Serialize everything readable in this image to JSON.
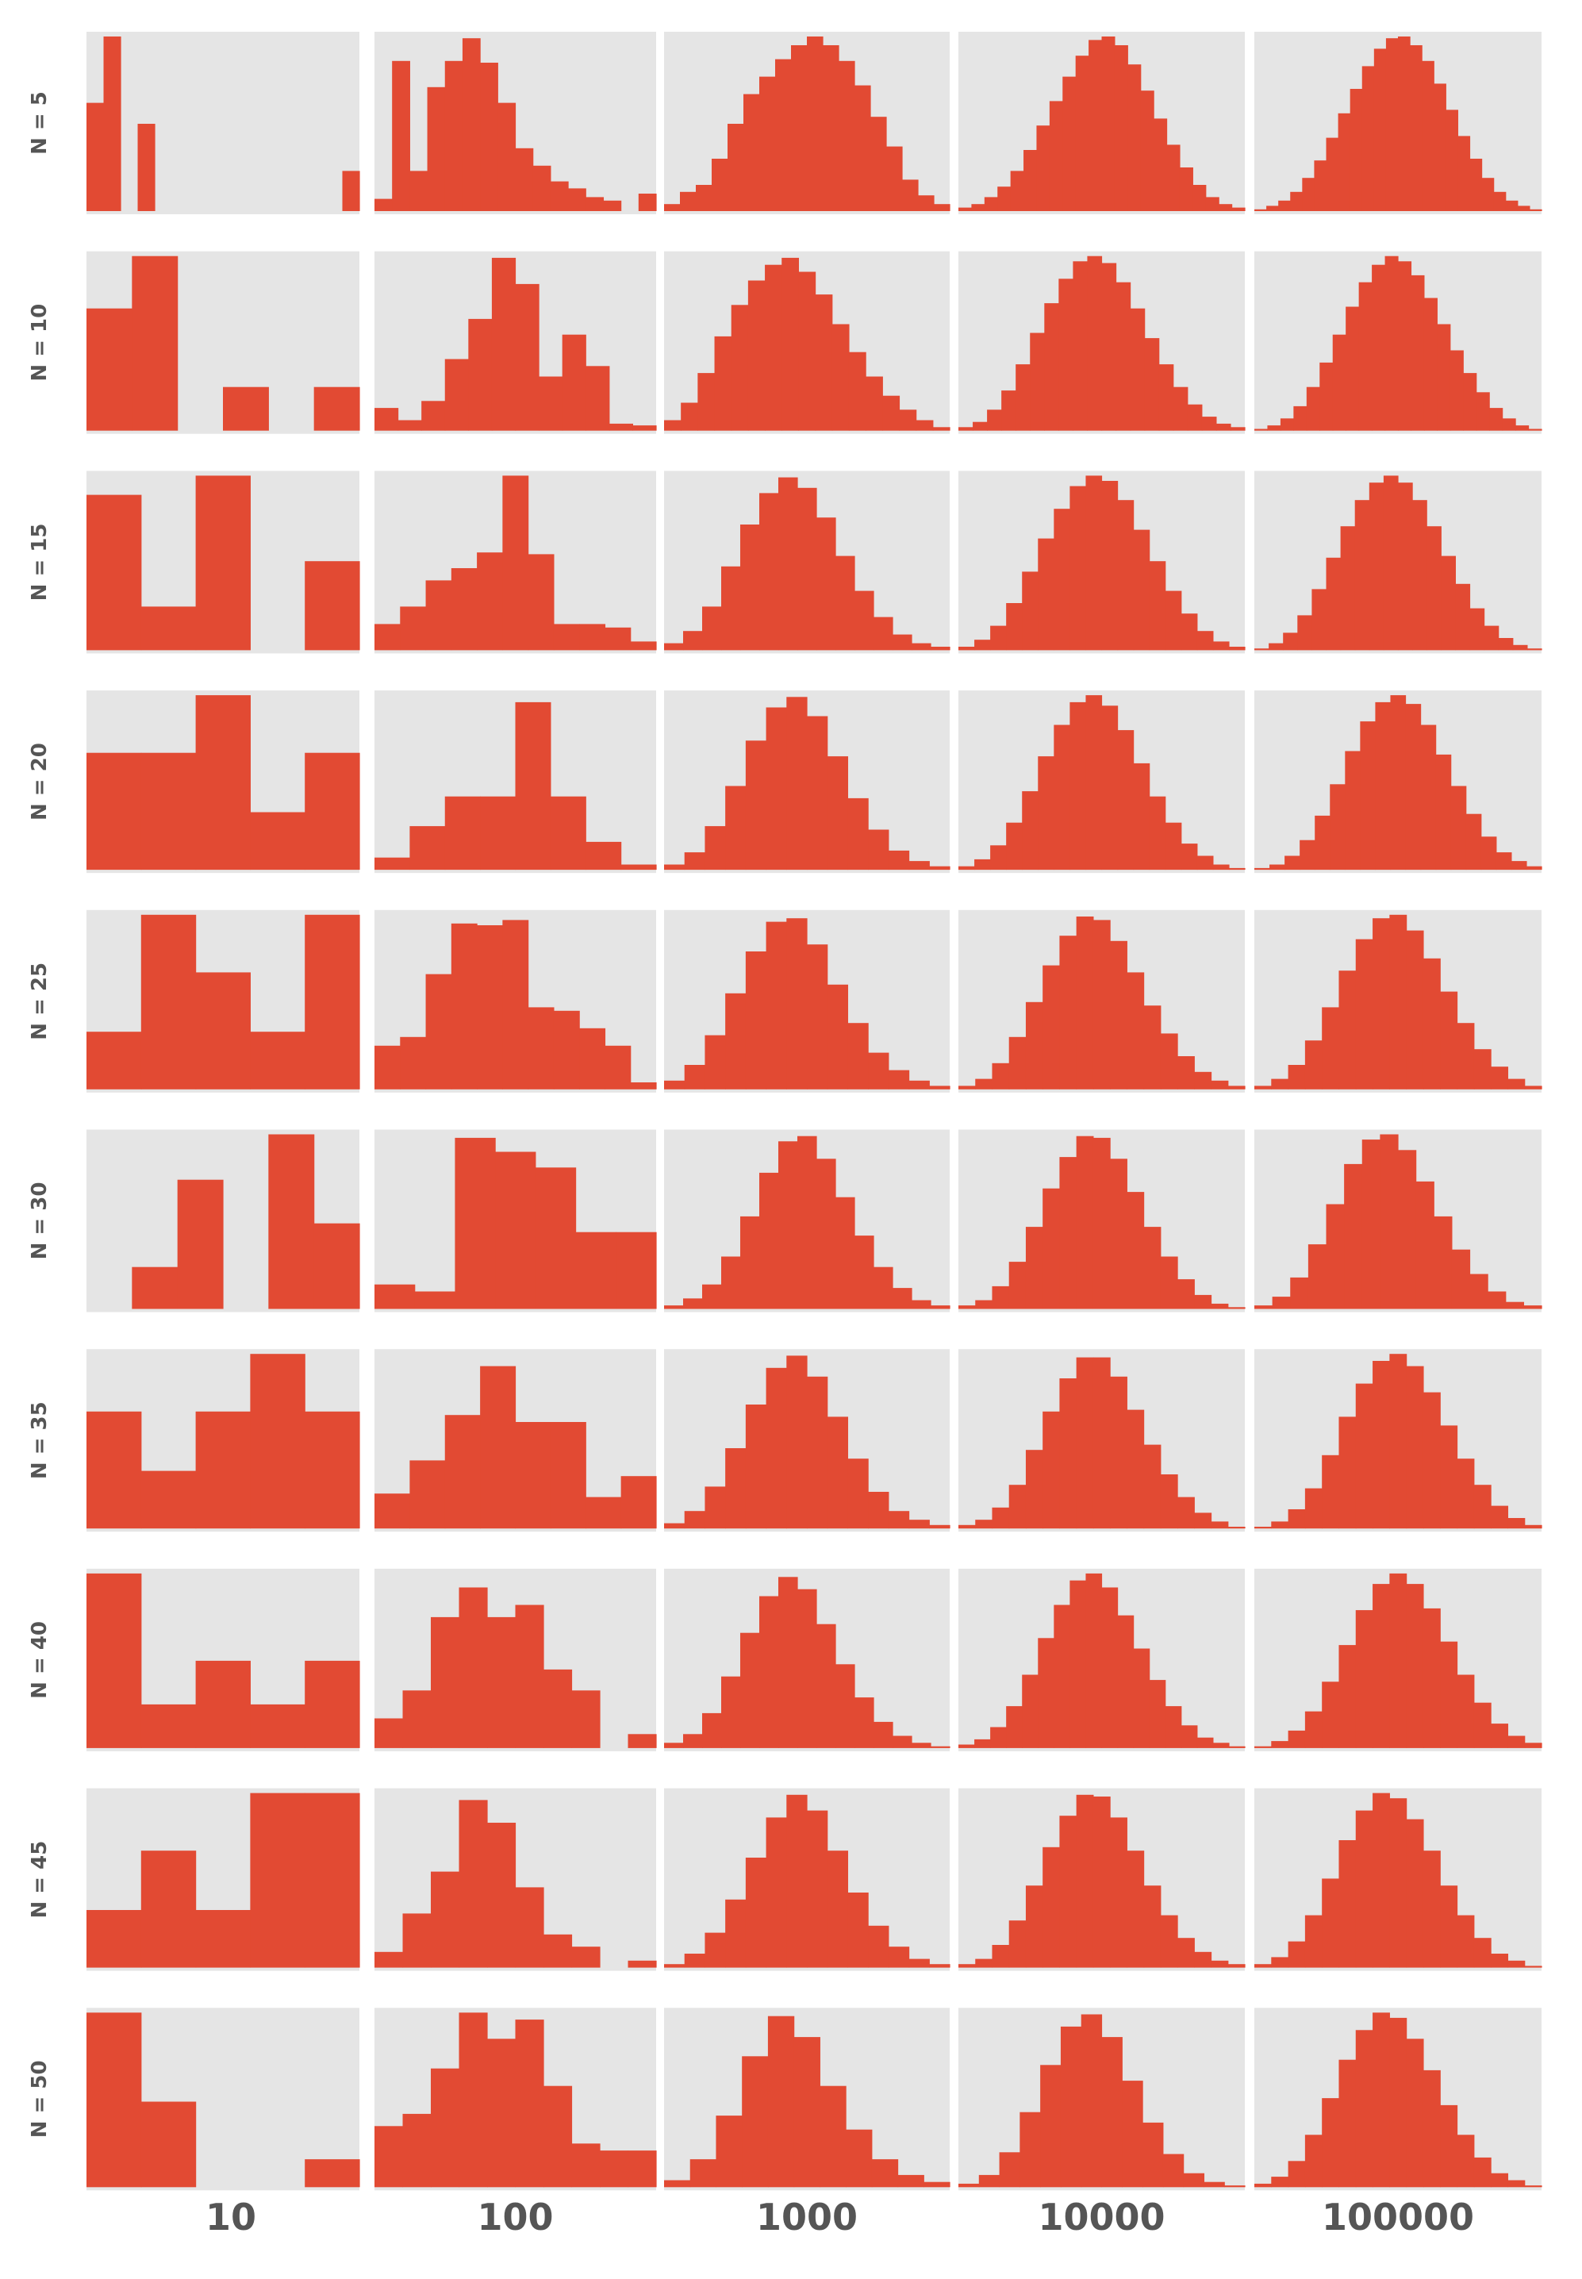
{
  "chart_data": {
    "type": "histogram-grid",
    "colors": {
      "bar": "#e24a33",
      "panel_bg": "#e5e5e5",
      "label": "#555555"
    },
    "grid": true,
    "row_labels": [
      "N = 5",
      "N = 10",
      "N = 15",
      "N = 20",
      "N = 25",
      "N = 30",
      "N = 35",
      "N = 40",
      "N = 45",
      "N = 50"
    ],
    "column_labels": [
      "10",
      "100",
      "1000",
      "10000",
      "100000"
    ],
    "panels": [
      [
        [
          0.62,
          1.0,
          0.0,
          0.5,
          0.0,
          0.0,
          0.0,
          0.0,
          0.0,
          0.0,
          0.0,
          0.0,
          0.0,
          0.0,
          0.0,
          0.23
        ],
        [
          0.07,
          0.86,
          0.23,
          0.71,
          0.86,
          0.99,
          0.85,
          0.62,
          0.36,
          0.26,
          0.17,
          0.13,
          0.08,
          0.06,
          0.0,
          0.1
        ],
        [
          0.04,
          0.11,
          0.15,
          0.3,
          0.5,
          0.67,
          0.77,
          0.87,
          0.95,
          1.0,
          0.95,
          0.86,
          0.72,
          0.54,
          0.37,
          0.18,
          0.09,
          0.04
        ],
        [
          0.02,
          0.04,
          0.08,
          0.14,
          0.23,
          0.35,
          0.49,
          0.63,
          0.77,
          0.89,
          0.98,
          1.0,
          0.95,
          0.84,
          0.69,
          0.53,
          0.38,
          0.25,
          0.15,
          0.08,
          0.04,
          0.02
        ],
        [
          0.01,
          0.03,
          0.06,
          0.11,
          0.19,
          0.29,
          0.42,
          0.56,
          0.7,
          0.83,
          0.93,
          0.99,
          1.0,
          0.95,
          0.86,
          0.73,
          0.58,
          0.43,
          0.3,
          0.19,
          0.11,
          0.06,
          0.03,
          0.01
        ]
      ],
      [
        [
          0.7,
          1.0,
          0.0,
          0.25,
          0.0,
          0.25
        ],
        [
          0.13,
          0.06,
          0.17,
          0.41,
          0.64,
          0.99,
          0.84,
          0.31,
          0.55,
          0.37,
          0.04,
          0.03
        ],
        [
          0.06,
          0.16,
          0.33,
          0.54,
          0.72,
          0.86,
          0.95,
          0.99,
          0.91,
          0.78,
          0.61,
          0.45,
          0.31,
          0.2,
          0.12,
          0.06,
          0.02
        ],
        [
          0.02,
          0.05,
          0.12,
          0.23,
          0.38,
          0.56,
          0.73,
          0.87,
          0.97,
          1.0,
          0.96,
          0.85,
          0.7,
          0.53,
          0.38,
          0.25,
          0.15,
          0.08,
          0.04,
          0.02
        ],
        [
          0.01,
          0.03,
          0.07,
          0.14,
          0.25,
          0.39,
          0.55,
          0.71,
          0.85,
          0.95,
          1.0,
          0.97,
          0.89,
          0.76,
          0.61,
          0.46,
          0.33,
          0.22,
          0.13,
          0.07,
          0.03,
          0.01
        ]
      ],
      [
        [
          0.89,
          0.25,
          1.0,
          0.0,
          0.51
        ],
        [
          0.15,
          0.25,
          0.4,
          0.47,
          0.56,
          1.0,
          0.55,
          0.15,
          0.15,
          0.13,
          0.05
        ],
        [
          0.04,
          0.11,
          0.25,
          0.48,
          0.72,
          0.9,
          0.99,
          0.93,
          0.76,
          0.54,
          0.34,
          0.19,
          0.09,
          0.04,
          0.02
        ],
        [
          0.02,
          0.06,
          0.14,
          0.27,
          0.45,
          0.64,
          0.81,
          0.94,
          1.0,
          0.97,
          0.86,
          0.69,
          0.51,
          0.34,
          0.21,
          0.11,
          0.05,
          0.02
        ],
        [
          0.01,
          0.04,
          0.1,
          0.2,
          0.35,
          0.53,
          0.71,
          0.86,
          0.96,
          1.0,
          0.96,
          0.86,
          0.71,
          0.54,
          0.38,
          0.24,
          0.14,
          0.07,
          0.03,
          0.01
        ]
      ],
      [
        [
          0.67,
          0.67,
          1.0,
          0.33,
          0.67
        ],
        [
          0.07,
          0.25,
          0.42,
          0.42,
          0.96,
          0.42,
          0.16,
          0.03
        ],
        [
          0.03,
          0.1,
          0.25,
          0.48,
          0.74,
          0.93,
          0.99,
          0.88,
          0.65,
          0.41,
          0.23,
          0.11,
          0.05,
          0.02
        ],
        [
          0.02,
          0.06,
          0.14,
          0.27,
          0.45,
          0.65,
          0.83,
          0.96,
          1.0,
          0.94,
          0.8,
          0.61,
          0.42,
          0.27,
          0.15,
          0.08,
          0.03,
          0.01
        ],
        [
          0.01,
          0.03,
          0.08,
          0.17,
          0.31,
          0.49,
          0.68,
          0.85,
          0.96,
          1.0,
          0.95,
          0.83,
          0.66,
          0.48,
          0.32,
          0.19,
          0.1,
          0.05,
          0.02
        ]
      ],
      [
        [
          0.33,
          1.0,
          0.67,
          0.33,
          1.0
        ],
        [
          0.25,
          0.3,
          0.66,
          0.95,
          0.94,
          0.97,
          0.47,
          0.45,
          0.35,
          0.25,
          0.04
        ],
        [
          0.05,
          0.14,
          0.31,
          0.55,
          0.79,
          0.96,
          0.98,
          0.83,
          0.6,
          0.38,
          0.21,
          0.11,
          0.05,
          0.02
        ],
        [
          0.02,
          0.06,
          0.15,
          0.3,
          0.5,
          0.71,
          0.88,
          0.99,
          0.97,
          0.85,
          0.67,
          0.48,
          0.32,
          0.19,
          0.1,
          0.05,
          0.02
        ],
        [
          0.02,
          0.06,
          0.14,
          0.28,
          0.47,
          0.68,
          0.86,
          0.98,
          1.0,
          0.91,
          0.75,
          0.56,
          0.38,
          0.23,
          0.13,
          0.06,
          0.02
        ]
      ],
      [
        [
          0.0,
          0.24,
          0.74,
          0.0,
          1.0,
          0.49
        ],
        [
          0.14,
          0.1,
          0.98,
          0.9,
          0.81,
          0.44,
          0.44
        ],
        [
          0.02,
          0.06,
          0.14,
          0.3,
          0.53,
          0.78,
          0.96,
          0.99,
          0.86,
          0.64,
          0.42,
          0.24,
          0.12,
          0.05,
          0.02
        ],
        [
          0.02,
          0.05,
          0.13,
          0.27,
          0.47,
          0.69,
          0.87,
          0.99,
          0.98,
          0.86,
          0.67,
          0.47,
          0.3,
          0.17,
          0.08,
          0.03,
          0.01
        ],
        [
          0.02,
          0.07,
          0.18,
          0.37,
          0.6,
          0.83,
          0.97,
          1.0,
          0.91,
          0.73,
          0.53,
          0.34,
          0.2,
          0.1,
          0.04,
          0.02
        ]
      ],
      [
        [
          0.67,
          0.33,
          0.67,
          1.0,
          0.67
        ],
        [
          0.2,
          0.39,
          0.65,
          0.93,
          0.61,
          0.61,
          0.18,
          0.3
        ],
        [
          0.03,
          0.1,
          0.24,
          0.46,
          0.71,
          0.92,
          0.99,
          0.87,
          0.64,
          0.4,
          0.21,
          0.1,
          0.05,
          0.02
        ],
        [
          0.02,
          0.05,
          0.12,
          0.25,
          0.45,
          0.67,
          0.86,
          0.98,
          0.98,
          0.87,
          0.68,
          0.48,
          0.31,
          0.18,
          0.09,
          0.04,
          0.01
        ],
        [
          0.01,
          0.04,
          0.11,
          0.23,
          0.42,
          0.64,
          0.83,
          0.96,
          1.0,
          0.93,
          0.78,
          0.59,
          0.4,
          0.25,
          0.13,
          0.06,
          0.02
        ]
      ],
      [
        [
          1.0,
          0.25,
          0.5,
          0.25,
          0.5
        ],
        [
          0.17,
          0.33,
          0.75,
          0.92,
          0.75,
          0.82,
          0.45,
          0.33,
          0.0,
          0.08
        ],
        [
          0.03,
          0.08,
          0.2,
          0.41,
          0.66,
          0.87,
          0.98,
          0.91,
          0.71,
          0.48,
          0.29,
          0.15,
          0.07,
          0.03,
          0.01
        ],
        [
          0.02,
          0.05,
          0.12,
          0.24,
          0.42,
          0.63,
          0.82,
          0.96,
          1.0,
          0.92,
          0.76,
          0.57,
          0.39,
          0.24,
          0.13,
          0.06,
          0.03,
          0.01
        ],
        [
          0.01,
          0.04,
          0.1,
          0.21,
          0.38,
          0.59,
          0.79,
          0.94,
          1.0,
          0.94,
          0.8,
          0.61,
          0.42,
          0.26,
          0.14,
          0.07,
          0.03
        ]
      ],
      [
        [
          0.33,
          0.67,
          0.33,
          1.0,
          1.0
        ],
        [
          0.09,
          0.31,
          0.55,
          0.96,
          0.83,
          0.46,
          0.19,
          0.12,
          0.0,
          0.04
        ],
        [
          0.02,
          0.08,
          0.2,
          0.39,
          0.63,
          0.86,
          0.99,
          0.9,
          0.67,
          0.43,
          0.24,
          0.12,
          0.05,
          0.02
        ],
        [
          0.02,
          0.05,
          0.13,
          0.27,
          0.47,
          0.69,
          0.87,
          0.99,
          0.98,
          0.86,
          0.67,
          0.47,
          0.3,
          0.17,
          0.09,
          0.04,
          0.02
        ],
        [
          0.02,
          0.06,
          0.15,
          0.3,
          0.51,
          0.73,
          0.9,
          1.0,
          0.97,
          0.85,
          0.67,
          0.47,
          0.3,
          0.17,
          0.08,
          0.04,
          0.01
        ]
      ],
      [
        [
          1.0,
          0.49,
          0.0,
          0.0,
          0.16
        ],
        [
          0.35,
          0.42,
          0.68,
          1.0,
          0.85,
          0.96,
          0.58,
          0.25,
          0.21,
          0.21
        ],
        [
          0.04,
          0.16,
          0.41,
          0.75,
          0.98,
          0.86,
          0.58,
          0.33,
          0.16,
          0.07,
          0.03
        ],
        [
          0.02,
          0.07,
          0.2,
          0.43,
          0.7,
          0.92,
          0.99,
          0.86,
          0.61,
          0.37,
          0.19,
          0.08,
          0.03,
          0.01
        ],
        [
          0.02,
          0.06,
          0.15,
          0.3,
          0.51,
          0.73,
          0.9,
          1.0,
          0.97,
          0.85,
          0.67,
          0.47,
          0.3,
          0.17,
          0.08,
          0.04,
          0.01
        ]
      ]
    ]
  }
}
